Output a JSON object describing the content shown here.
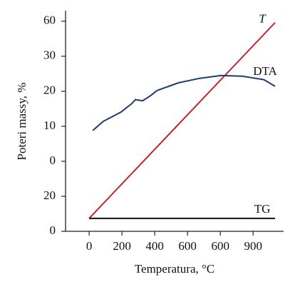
{
  "chart_data": {
    "type": "line",
    "xlabel": "Temperatura, °C",
    "ylabel": "Poteri massy, %",
    "xlim": [
      -0.72,
      5.93
    ],
    "ylim": [
      0,
      6.3
    ],
    "xticks": [
      0,
      {
        "value": 1,
        "label": "200"
      },
      {
        "value": 2,
        "label": "400"
      },
      {
        "value": 3,
        "label": "600"
      },
      {
        "value": 4,
        "label": "600"
      },
      {
        "value": 5,
        "label": "900"
      }
    ],
    "yticks": [
      0,
      {
        "value": 1,
        "label": "20"
      },
      {
        "value": 2,
        "label": "0"
      },
      {
        "value": 3,
        "label": "10"
      },
      {
        "value": 4,
        "label": "20"
      },
      {
        "value": 5,
        "label": "30"
      },
      {
        "value": 6,
        "label": "60"
      }
    ],
    "grid": false,
    "series": [
      {
        "name": "T",
        "color": "#c0272d",
        "x": [
          0,
          5.67
        ],
        "values": [
          0.37,
          5.96
        ]
      },
      {
        "name": "DTA",
        "color": "#1f3a6e",
        "x": [
          0.11,
          0.43,
          0.98,
          1.3,
          1.41,
          1.63,
          1.85,
          2.07,
          2.72,
          3.37,
          4.02,
          4.67,
          5.33,
          5.67
        ],
        "values": [
          2.88,
          3.14,
          3.41,
          3.65,
          3.76,
          3.73,
          3.86,
          4.02,
          4.24,
          4.37,
          4.45,
          4.43,
          4.33,
          4.14
        ]
      },
      {
        "name": "TG",
        "color": "#111111",
        "x": [
          0,
          5.67
        ],
        "values": [
          0.37,
          0.37
        ]
      }
    ]
  }
}
